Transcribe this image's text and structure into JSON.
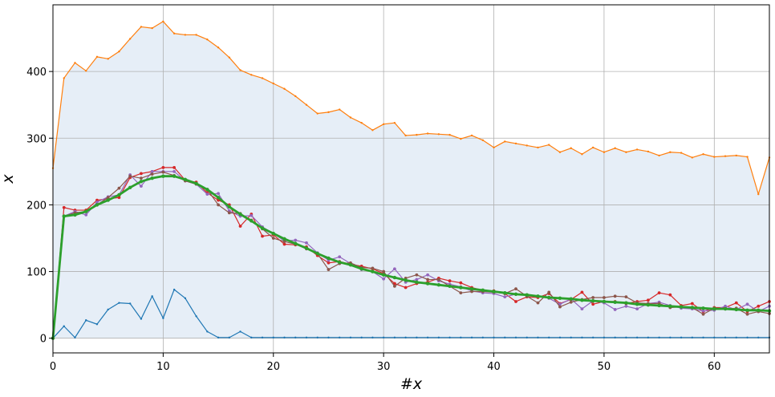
{
  "chart_data": {
    "type": "line",
    "title": "",
    "xlabel": "#x",
    "ylabel": "x",
    "xlim": [
      0,
      65
    ],
    "ylim": [
      -22,
      500
    ],
    "xticks": [
      0,
      10,
      20,
      30,
      40,
      50,
      60
    ],
    "yticks": [
      0,
      100,
      200,
      300,
      400
    ],
    "grid": true,
    "legend": "none",
    "band": {
      "color": "#e6eef7",
      "upper": [
        255,
        390,
        413,
        401,
        422,
        419,
        430,
        449,
        467,
        465,
        475,
        457,
        455,
        455,
        448,
        436,
        421,
        402,
        395,
        390,
        382,
        374,
        363,
        350,
        337,
        339,
        343,
        331,
        323,
        312,
        321,
        323,
        304,
        305,
        307,
        306,
        305,
        299,
        304,
        297,
        286,
        295,
        292,
        289,
        286,
        290,
        279,
        285,
        276,
        286,
        279,
        285,
        279,
        283,
        280,
        274,
        279,
        278,
        271,
        276,
        272,
        273,
        274,
        272,
        216,
        271
      ]
    },
    "series": [
      {
        "color": "#ff7f0e",
        "marker": "dot-small",
        "values": [
          255,
          390,
          413,
          401,
          422,
          419,
          430,
          449,
          467,
          465,
          475,
          457,
          455,
          455,
          448,
          436,
          421,
          402,
          395,
          390,
          382,
          374,
          363,
          350,
          337,
          339,
          343,
          331,
          323,
          312,
          321,
          323,
          304,
          305,
          307,
          306,
          305,
          299,
          304,
          297,
          286,
          295,
          292,
          289,
          286,
          290,
          279,
          285,
          276,
          286,
          279,
          285,
          279,
          283,
          280,
          274,
          279,
          278,
          271,
          276,
          272,
          273,
          274,
          272,
          216,
          271
        ]
      },
      {
        "color": "#1f77b4",
        "marker": "dot-small",
        "values": [
          0,
          18,
          1,
          27,
          21,
          43,
          53,
          52,
          29,
          63,
          30,
          73,
          60,
          33,
          10,
          1,
          1,
          10,
          1,
          1,
          1,
          1,
          1,
          1,
          1,
          1,
          1,
          1,
          1,
          1,
          1,
          1,
          1,
          1,
          1,
          1,
          1,
          1,
          1,
          1,
          1,
          1,
          1,
          1,
          1,
          1,
          1,
          1,
          1,
          1,
          1,
          1,
          1,
          1,
          1,
          1,
          1,
          1,
          1,
          1,
          1,
          1,
          1,
          1,
          1,
          1
        ]
      },
      {
        "color": "#d62728",
        "marker": "dot",
        "values": [
          0,
          196,
          192,
          192,
          207,
          209,
          211,
          241,
          247,
          250,
          256,
          256,
          237,
          234,
          218,
          207,
          200,
          168,
          186,
          153,
          155,
          141,
          140,
          137,
          124,
          113,
          115,
          111,
          108,
          104,
          97,
          82,
          76,
          82,
          84,
          90,
          86,
          83,
          76,
          72,
          71,
          67,
          55,
          62,
          61,
          67,
          52,
          58,
          69,
          51,
          55,
          55,
          52,
          55,
          57,
          68,
          65,
          49,
          52,
          40,
          46,
          46,
          53,
          40,
          48,
          55
        ]
      },
      {
        "color": "#9467bd",
        "marker": "dot",
        "values": [
          0,
          183,
          190,
          185,
          204,
          212,
          215,
          245,
          228,
          250,
          250,
          250,
          236,
          231,
          216,
          217,
          191,
          183,
          184,
          167,
          157,
          146,
          147,
          143,
          128,
          117,
          122,
          112,
          103,
          100,
          89,
          104,
          84,
          88,
          95,
          86,
          81,
          77,
          71,
          68,
          67,
          62,
          66,
          64,
          63,
          60,
          51,
          59,
          44,
          56,
          53,
          43,
          48,
          44,
          52,
          54,
          49,
          45,
          44,
          41,
          42,
          48,
          43,
          51,
          40,
          48
        ]
      },
      {
        "color": "#8c564b",
        "marker": "dot",
        "values": [
          0,
          183,
          188,
          190,
          200,
          211,
          225,
          243,
          240,
          246,
          249,
          244,
          236,
          231,
          223,
          200,
          188,
          187,
          177,
          164,
          150,
          145,
          141,
          134,
          127,
          103,
          112,
          113,
          106,
          105,
          100,
          78,
          90,
          95,
          88,
          88,
          78,
          68,
          70,
          70,
          69,
          67,
          74,
          63,
          53,
          69,
          47,
          54,
          58,
          61,
          61,
          63,
          62,
          53,
          52,
          52,
          46,
          47,
          46,
          36,
          45,
          44,
          45,
          36,
          40,
          37
        ]
      },
      {
        "color": "#2ca02c",
        "marker": "dot-thick",
        "values": [
          0,
          183,
          185,
          190,
          200,
          207,
          215,
          226,
          235,
          240,
          243,
          243,
          238,
          232,
          223,
          211,
          197,
          186,
          176,
          165,
          157,
          149,
          142,
          135,
          127,
          120,
          114,
          110,
          104,
          100,
          95,
          91,
          87,
          84,
          82,
          80,
          78,
          76,
          74,
          72,
          70,
          68,
          66,
          65,
          63,
          61,
          60,
          59,
          57,
          56,
          55,
          54,
          53,
          51,
          50,
          49,
          48,
          47,
          46,
          45,
          44,
          44,
          43,
          42,
          42,
          41
        ]
      }
    ]
  }
}
